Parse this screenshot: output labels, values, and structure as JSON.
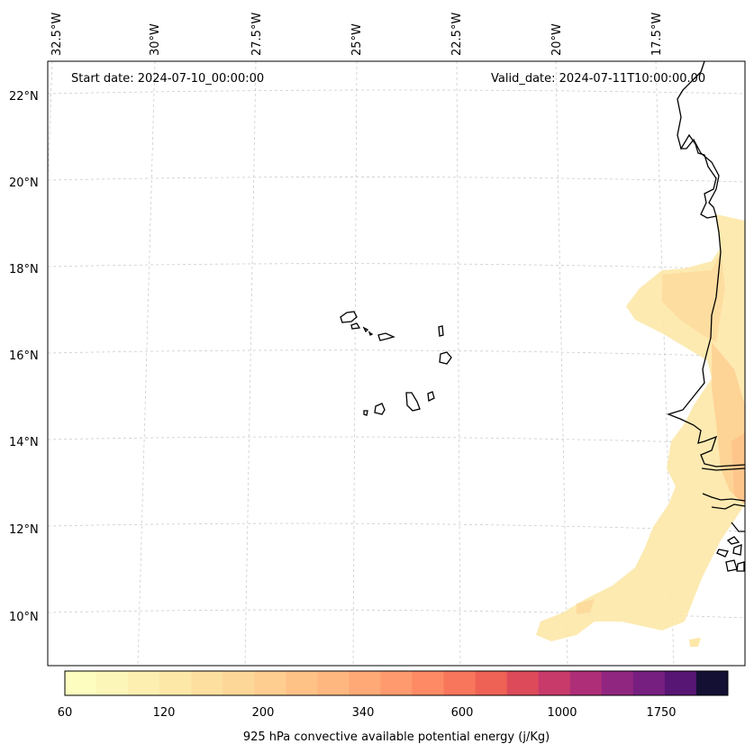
{
  "map": {
    "start_date": "Start date: 2024-07-10_00:00:00",
    "valid_date": "Valid_date: 2024-07-11T10:00:00.00",
    "lon_ticks": [
      "32.5°W",
      "30°W",
      "27.5°W",
      "25°W",
      "22.5°W",
      "20°W",
      "17.5°W"
    ],
    "lat_ticks": [
      "22°N",
      "20°N",
      "18°N",
      "16°N",
      "14°N",
      "12°N",
      "10°N"
    ]
  },
  "colorbar": {
    "title": "925 hPa convective available potential energy (j/Kg)",
    "tick_labels": [
      "60",
      "120",
      "200",
      "340",
      "600",
      "1000",
      "1750"
    ],
    "colors": [
      "#fcfdbf",
      "#fcf6b8",
      "#fcefb0",
      "#fde8a8",
      "#fde0a0",
      "#fdd798",
      "#fecd90",
      "#fec287",
      "#feb77f",
      "#fea976",
      "#fe9a6d",
      "#fd8a64",
      "#f8765c",
      "#ee6155",
      "#dd4a5a",
      "#c83a6a",
      "#ae2e78",
      "#912680",
      "#761f80",
      "#571574",
      "#141033"
    ]
  }
}
